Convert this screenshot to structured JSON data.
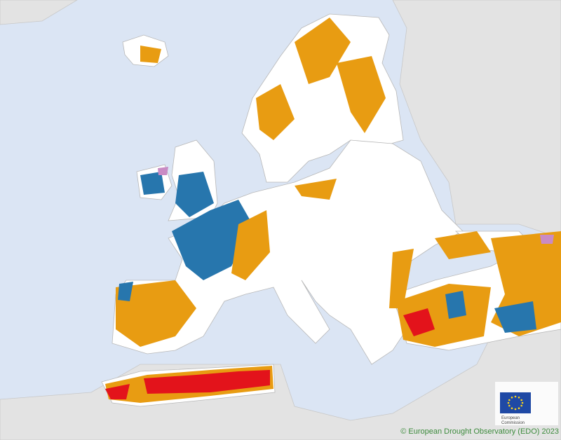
{
  "credit": "© European Drought Observatory (EDO) 2023",
  "logo": {
    "lines": [
      "European",
      "Commission"
    ]
  }
}
